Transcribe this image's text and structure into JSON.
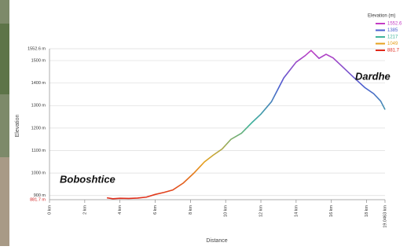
{
  "chart_data": {
    "type": "line",
    "x_label": "Distance",
    "y_label": "Elevation",
    "annotations": [
      {
        "text": "Boboshtice",
        "x": 3.3,
        "y": 890
      },
      {
        "text": "Dardhe",
        "x": 19.0,
        "y": 1420
      }
    ],
    "legend": {
      "title": "Elevation (m)",
      "entries": [
        {
          "value": 1552.6,
          "color": "#c43cc4"
        },
        {
          "value": 1385,
          "color": "#4a5fd0"
        },
        {
          "value": 1217,
          "color": "#3fb49a"
        },
        {
          "value": 1049,
          "color": "#e6a21e"
        },
        {
          "value": 881.7,
          "color": "#e02a1c"
        }
      ]
    },
    "x": [
      3.26,
      3.6,
      4.0,
      4.5,
      5.0,
      5.5,
      6.0,
      6.5,
      7.0,
      7.6,
      8.2,
      8.8,
      9.3,
      9.8,
      10.3,
      10.9,
      11.5,
      12.0,
      12.6,
      13.3,
      14.0,
      14.5,
      14.85,
      15.3,
      15.7,
      16.1,
      16.6,
      17.3,
      17.9,
      18.4,
      18.8,
      19.05
    ],
    "series": [
      {
        "name": "Elevation",
        "values": [
          890,
          886,
          888,
          887,
          889,
          893,
          905,
          914,
          925,
          956,
          1000,
          1050,
          1080,
          1107,
          1150,
          1177,
          1225,
          1262,
          1317,
          1423,
          1493,
          1521,
          1545,
          1510,
          1528,
          1512,
          1475,
          1423,
          1380,
          1353,
          1320,
          1282
        ]
      }
    ],
    "xlim": [
      0,
      19.0463
    ],
    "ylim": [
      881.7,
      1552.6
    ],
    "xticks": [
      {
        "value": 0,
        "label": "0 km"
      },
      {
        "value": 2,
        "label": "2 km"
      },
      {
        "value": 4,
        "label": "4 km"
      },
      {
        "value": 6,
        "label": "6 km"
      },
      {
        "value": 8,
        "label": "8 km"
      },
      {
        "value": 10,
        "label": "10 km"
      },
      {
        "value": 12,
        "label": "12 km"
      },
      {
        "value": 14,
        "label": "14 km"
      },
      {
        "value": 16,
        "label": "16 km"
      },
      {
        "value": 18,
        "label": "18 km"
      },
      {
        "value": 19.0463,
        "label": "19.0463 km"
      }
    ],
    "yticks": [
      {
        "value": 881.7,
        "label": "881.7 m"
      },
      {
        "value": 900,
        "label": "900 m"
      },
      {
        "value": 1000,
        "label": "1000 m"
      },
      {
        "value": 1100,
        "label": "1100 m"
      },
      {
        "value": 1200,
        "label": "1200 m"
      },
      {
        "value": 1300,
        "label": "1300 m"
      },
      {
        "value": 1400,
        "label": "1400 m"
      },
      {
        "value": 1500,
        "label": "1500 m"
      },
      {
        "value": 1552.6,
        "label": "1552.6 m"
      }
    ],
    "grid": true
  }
}
